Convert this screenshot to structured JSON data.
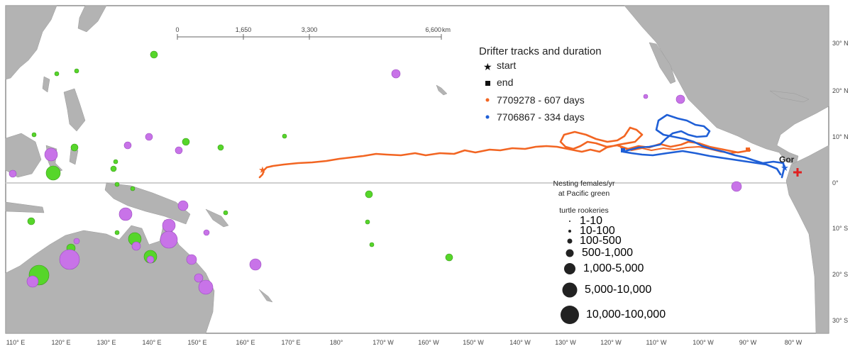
{
  "scale_bar": {
    "ticks": [
      "0",
      "1,650",
      "3,300",
      "6,600"
    ],
    "unit": "km"
  },
  "legend": {
    "title": "Drifter tracks and duration",
    "start_label": "start",
    "end_label": "end",
    "tracks": [
      {
        "label": "7709278 - 607 days",
        "color": "#f26522"
      },
      {
        "label": "7706867 - 334 days",
        "color": "#1f5fd6"
      }
    ]
  },
  "size_legend": {
    "title_lines": [
      "Nesting females/yr",
      "at Pacific green",
      "turtle rookeries"
    ],
    "classes": [
      "1-10",
      "10-100",
      "100-500",
      "500-1,000",
      "1,000-5,000",
      "5,000-10,000",
      "10,000-100,000"
    ]
  },
  "place_label": "Gor",
  "lon_labels": [
    "110° E",
    "120° E",
    "130° E",
    "140° E",
    "150° E",
    "160° E",
    "170° E",
    "180°",
    "170° W",
    "160° W",
    "150° W",
    "140° W",
    "130° W",
    "120° W",
    "110° W",
    "100° W",
    "90° W",
    "80° W"
  ],
  "lat_labels": [
    "30° N",
    "20° N",
    "10° N",
    "0°",
    "10° S",
    "20° S",
    "30° S"
  ],
  "colors": {
    "land": "#b3b3b3",
    "rookery_green": "#56d62a",
    "rookery_purple": "#c873e8",
    "end_marker": "#e02020"
  }
}
